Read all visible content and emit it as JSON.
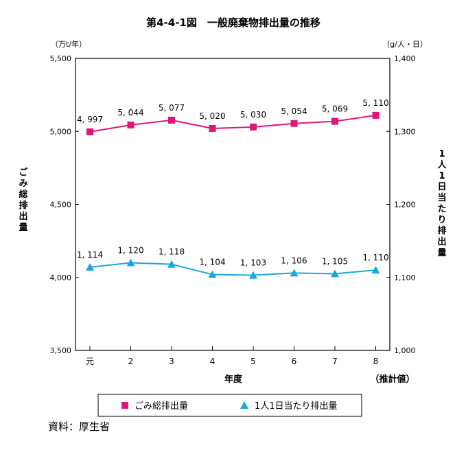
{
  "chart_data": {
    "type": "line",
    "title": "第4-4-1図　一般廃棄物排出量の推移",
    "categories": [
      "元",
      "2",
      "3",
      "4",
      "5",
      "6",
      "7",
      "8"
    ],
    "xlabel": "年度",
    "x_note": "（推計値）",
    "y_left": {
      "label": "ごみ総排出量",
      "unit": "（万t/年）",
      "ylim": [
        3500,
        5500
      ],
      "ticks": [
        "3,500",
        "4,000",
        "4,500",
        "5,000",
        "5,500"
      ]
    },
    "y_right": {
      "label": "1人1日当たり排出量",
      "unit": "（g/人・日）",
      "ylim": [
        1000,
        1400
      ],
      "ticks": [
        "1,000",
        "1,100",
        "1,200",
        "1,300",
        "1,400"
      ]
    },
    "series": [
      {
        "name": "ごみ総排出量",
        "axis": "left",
        "marker": "square",
        "color": "#e0157a",
        "values": [
          4997,
          5044,
          5077,
          5020,
          5030,
          5054,
          5069,
          5110
        ],
        "labels": [
          "4, 997",
          "5, 044",
          "5, 077",
          "5, 020",
          "5, 030",
          "5, 054",
          "5, 069",
          "5, 110"
        ]
      },
      {
        "name": "1人1日当たり排出量",
        "axis": "right",
        "marker": "triangle",
        "color": "#1aa7dc",
        "values": [
          1114,
          1120,
          1118,
          1104,
          1103,
          1106,
          1105,
          1110
        ],
        "labels": [
          "1, 114",
          "1, 120",
          "1, 118",
          "1, 104",
          "1, 103",
          "1, 106",
          "1, 105",
          "1, 110"
        ]
      }
    ],
    "grid": false,
    "legend_position": "bottom"
  },
  "source_text": "資料：厚生省"
}
